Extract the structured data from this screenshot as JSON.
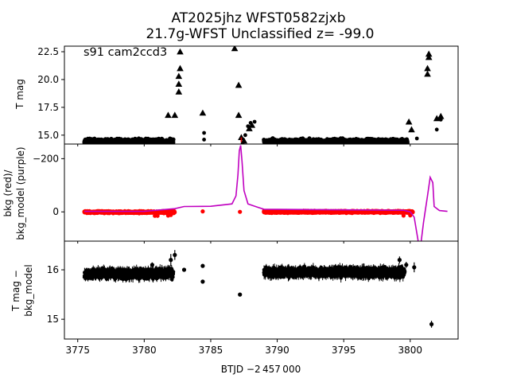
{
  "figure": {
    "title_line1": "AT2025jhz  WFST0582zjxb",
    "title_line2": "21.7g-WFST Unclassified z= -99.0",
    "xlabel": "BTJD −2 457 000"
  },
  "chart_data": [
    {
      "type": "scatter",
      "panel": "top",
      "annotation": "s91 cam2ccd3",
      "ylabel": "T mag",
      "xlim": [
        3774.0,
        3803.6
      ],
      "ylim": [
        23.0,
        14.2
      ],
      "y_inverted": true,
      "yticks": [
        15.0,
        17.5,
        20.0,
        22.5
      ],
      "ytick_labels": [
        "15.0",
        "17.5",
        "20.0",
        "22.5"
      ],
      "detection_segments": [
        {
          "x_start": 3775.5,
          "x_end": 3782.2,
          "y_center": 14.4,
          "y_spread": 0.35
        },
        {
          "x_start": 3789.0,
          "x_end": 3799.8,
          "y_center": 14.4,
          "y_spread": 0.35
        }
      ],
      "detection_points": [
        {
          "x": 3784.5,
          "y": 14.6
        },
        {
          "x": 3784.5,
          "y": 15.2
        },
        {
          "x": 3800.5,
          "y": 14.7
        },
        {
          "x": 3800.8,
          "y": 14.0
        },
        {
          "x": 3801.2,
          "y": 13.7
        },
        {
          "x": 3801.6,
          "y": 13.4
        },
        {
          "x": 3802.0,
          "y": 15.5
        },
        {
          "x": 3802.3,
          "y": 16.4
        },
        {
          "x": 3787.2,
          "y": 13.9
        },
        {
          "x": 3787.4,
          "y": 14.2
        },
        {
          "x": 3787.6,
          "y": 15.0
        },
        {
          "x": 3787.8,
          "y": 15.8
        },
        {
          "x": 3788.0,
          "y": 16.1
        },
        {
          "x": 3788.3,
          "y": 16.2
        }
      ],
      "upper_limits": [
        {
          "x": 3781.8,
          "y": 16.8
        },
        {
          "x": 3782.3,
          "y": 16.8
        },
        {
          "x": 3782.6,
          "y": 18.9
        },
        {
          "x": 3782.6,
          "y": 19.6
        },
        {
          "x": 3782.6,
          "y": 20.3
        },
        {
          "x": 3782.7,
          "y": 21.0
        },
        {
          "x": 3782.7,
          "y": 22.5
        },
        {
          "x": 3784.4,
          "y": 17.0
        },
        {
          "x": 3786.8,
          "y": 22.8
        },
        {
          "x": 3787.1,
          "y": 19.5
        },
        {
          "x": 3787.1,
          "y": 16.8
        },
        {
          "x": 3787.3,
          "y": 14.8
        },
        {
          "x": 3787.5,
          "y": 14.5
        },
        {
          "x": 3787.9,
          "y": 15.6
        },
        {
          "x": 3788.1,
          "y": 15.9
        },
        {
          "x": 3799.9,
          "y": 16.2
        },
        {
          "x": 3800.1,
          "y": 15.5
        },
        {
          "x": 3801.3,
          "y": 20.5
        },
        {
          "x": 3801.3,
          "y": 21.0
        },
        {
          "x": 3801.4,
          "y": 22.0
        },
        {
          "x": 3801.4,
          "y": 22.3
        },
        {
          "x": 3802.0,
          "y": 16.5
        },
        {
          "x": 3802.3,
          "y": 16.7
        }
      ],
      "vertical_line": {
        "x": 3787.3,
        "color": "#e00000",
        "style": "dashed"
      },
      "marker_color": "#000000"
    },
    {
      "type": "line",
      "panel": "middle",
      "ylabel_line1": "bkg (red)/",
      "ylabel_line2": "bkg_model (purple)",
      "xlim": [
        3774.0,
        3803.6
      ],
      "ylim": [
        -255,
        110
      ],
      "yticks": [
        0,
        -200
      ],
      "ytick_labels": [
        "0",
        "−200"
      ],
      "bkg_segments": [
        {
          "x_start": 3775.5,
          "x_end": 3782.3,
          "y_center": 1,
          "y_spread": 5
        },
        {
          "x_start": 3789.0,
          "x_end": 3800.2,
          "y_center": 0,
          "y_spread": 5
        }
      ],
      "bkg_points": [
        {
          "x": 3784.4,
          "y": -2
        },
        {
          "x": 3787.2,
          "y": 0
        },
        {
          "x": 3780.8,
          "y": 15
        },
        {
          "x": 3781.0,
          "y": 15
        },
        {
          "x": 3781.8,
          "y": 14
        },
        {
          "x": 3782.0,
          "y": 12
        },
        {
          "x": 3799.5,
          "y": 14
        },
        {
          "x": 3800.0,
          "y": 13
        }
      ],
      "bkg_color": "#ff0000",
      "bkg_model": [
        {
          "x": 3775.5,
          "y": -2
        },
        {
          "x": 3780.0,
          "y": -2
        },
        {
          "x": 3782.3,
          "y": -12
        },
        {
          "x": 3783.0,
          "y": -20
        },
        {
          "x": 3785.0,
          "y": -21
        },
        {
          "x": 3786.6,
          "y": -30
        },
        {
          "x": 3786.9,
          "y": -60
        },
        {
          "x": 3787.05,
          "y": -140
        },
        {
          "x": 3787.15,
          "y": -230
        },
        {
          "x": 3787.25,
          "y": -250
        },
        {
          "x": 3787.35,
          "y": -190
        },
        {
          "x": 3787.5,
          "y": -80
        },
        {
          "x": 3787.8,
          "y": -30
        },
        {
          "x": 3788.5,
          "y": -18
        },
        {
          "x": 3789.0,
          "y": -10
        },
        {
          "x": 3794.0,
          "y": -8
        },
        {
          "x": 3799.5,
          "y": -6
        },
        {
          "x": 3800.0,
          "y": 0
        },
        {
          "x": 3800.3,
          "y": 20
        },
        {
          "x": 3800.6,
          "y": 110
        },
        {
          "x": 3800.8,
          "y": 120
        },
        {
          "x": 3801.0,
          "y": 40
        },
        {
          "x": 3801.3,
          "y": -60
        },
        {
          "x": 3801.5,
          "y": -130
        },
        {
          "x": 3801.7,
          "y": -110
        },
        {
          "x": 3801.8,
          "y": -20
        },
        {
          "x": 3802.2,
          "y": -5
        },
        {
          "x": 3802.8,
          "y": -2
        }
      ],
      "bkg_model_color": "#c000c0"
    },
    {
      "type": "scatter",
      "panel": "bottom",
      "ylabel_line1": "T mag −",
      "ylabel_line2": "bkg_model",
      "xlim": [
        3774.0,
        3803.6
      ],
      "ylim": [
        16.58,
        14.6
      ],
      "y_inverted": true,
      "yticks": [
        15,
        16
      ],
      "ytick_labels": [
        "15",
        "16"
      ],
      "xticks": [
        3775,
        3780,
        3785,
        3790,
        3795,
        3800
      ],
      "xtick_labels": [
        "3775",
        "3780",
        "3785",
        "3790",
        "3795",
        "3800"
      ],
      "segments": [
        {
          "x_start": 3775.5,
          "x_end": 3782.2,
          "y_center": 15.92,
          "y_spread": 0.13
        },
        {
          "x_start": 3789.0,
          "x_end": 3799.6,
          "y_center": 15.95,
          "y_spread": 0.13
        }
      ],
      "points": [
        {
          "x": 3787.2,
          "y": 15.5,
          "err": 0
        },
        {
          "x": 3784.4,
          "y": 15.76,
          "err": 0.02
        },
        {
          "x": 3784.4,
          "y": 16.08,
          "err": 0.03
        },
        {
          "x": 3782.0,
          "y": 16.2,
          "err": 0.12
        },
        {
          "x": 3782.3,
          "y": 16.3,
          "err": 0.1
        },
        {
          "x": 3783.0,
          "y": 16.0,
          "err": 0.04
        },
        {
          "x": 3780.6,
          "y": 16.1,
          "err": 0.05
        },
        {
          "x": 3799.2,
          "y": 16.2,
          "err": 0.07
        },
        {
          "x": 3799.7,
          "y": 16.1,
          "err": 0.06
        },
        {
          "x": 3800.3,
          "y": 16.05,
          "err": 0.1
        },
        {
          "x": 3801.6,
          "y": 14.9,
          "err": 0.07
        }
      ],
      "marker_color": "#000000"
    }
  ]
}
